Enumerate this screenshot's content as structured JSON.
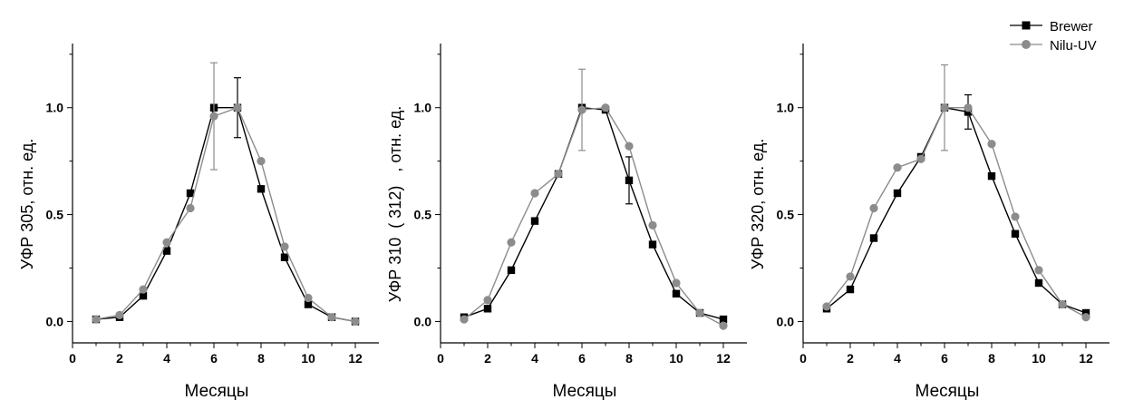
{
  "legend": {
    "position": "top-right",
    "items": [
      {
        "label": "Brewer",
        "color": "#000000",
        "marker": "square"
      },
      {
        "label": "Nilu-UV",
        "color": "#8c8c8c",
        "marker": "circle"
      }
    ]
  },
  "chart_data": [
    {
      "type": "line",
      "xlabel": "Месяцы",
      "ylabel": "УФР 305, отн. ед.",
      "xlim": [
        0,
        13
      ],
      "ylim": [
        -0.1,
        1.3
      ],
      "xticks": [
        0,
        2,
        4,
        6,
        8,
        10,
        12
      ],
      "yticks": [
        0.0,
        0.5,
        1.0
      ],
      "ytick_labels": [
        "0.0",
        "0.5",
        "1.0"
      ],
      "grid": false,
      "x": [
        1,
        2,
        3,
        4,
        5,
        6,
        7,
        8,
        9,
        10,
        11,
        12
      ],
      "series": [
        {
          "name": "Brewer",
          "color": "#000000",
          "values": [
            0.01,
            0.02,
            0.12,
            0.33,
            0.6,
            1.0,
            1.0,
            0.62,
            0.3,
            0.08,
            0.02,
            0.0
          ],
          "error_bars": [
            {
              "x": 7,
              "y": 1.0,
              "err": 0.14
            }
          ]
        },
        {
          "name": "Nilu-UV",
          "color": "#8c8c8c",
          "values": [
            0.01,
            0.03,
            0.15,
            0.37,
            0.53,
            0.96,
            1.0,
            0.75,
            0.35,
            0.11,
            0.02,
            0.0
          ],
          "error_bars": [
            {
              "x": 6,
              "y": 0.96,
              "err": 0.25
            }
          ]
        }
      ]
    },
    {
      "type": "line",
      "xlabel": "Месяцы",
      "ylabel": "УФР 310  ( 312)   , отн. ед.",
      "xlim": [
        0,
        13
      ],
      "ylim": [
        -0.1,
        1.3
      ],
      "xticks": [
        0,
        2,
        4,
        6,
        8,
        10,
        12
      ],
      "yticks": [
        0.0,
        0.5,
        1.0
      ],
      "ytick_labels": [
        "0.0",
        "0.5",
        "1.0"
      ],
      "grid": false,
      "x": [
        1,
        2,
        3,
        4,
        5,
        6,
        7,
        8,
        9,
        10,
        11,
        12
      ],
      "series": [
        {
          "name": "Brewer",
          "color": "#000000",
          "values": [
            0.02,
            0.06,
            0.24,
            0.47,
            0.69,
            1.0,
            0.99,
            0.66,
            0.36,
            0.13,
            0.04,
            0.01
          ],
          "error_bars": [
            {
              "x": 8,
              "y": 0.66,
              "err": 0.11
            }
          ]
        },
        {
          "name": "Nilu-UV",
          "color": "#8c8c8c",
          "values": [
            0.01,
            0.1,
            0.37,
            0.6,
            0.69,
            0.99,
            1.0,
            0.82,
            0.45,
            0.18,
            0.04,
            -0.02
          ],
          "error_bars": [
            {
              "x": 6,
              "y": 0.99,
              "err": 0.19
            }
          ]
        }
      ]
    },
    {
      "type": "line",
      "xlabel": "Месяцы",
      "ylabel": "УФР 320, отн. ед.",
      "xlim": [
        0,
        13
      ],
      "ylim": [
        -0.1,
        1.3
      ],
      "xticks": [
        0,
        2,
        4,
        6,
        8,
        10,
        12
      ],
      "yticks": [
        0.0,
        0.5,
        1.0
      ],
      "ytick_labels": [
        "0.0",
        "0.5",
        "1.0"
      ],
      "grid": false,
      "x": [
        1,
        2,
        3,
        4,
        5,
        6,
        7,
        8,
        9,
        10,
        11,
        12
      ],
      "series": [
        {
          "name": "Brewer",
          "color": "#000000",
          "values": [
            0.06,
            0.15,
            0.39,
            0.6,
            0.77,
            1.0,
            0.98,
            0.68,
            0.41,
            0.18,
            0.08,
            0.04
          ],
          "error_bars": [
            {
              "x": 7,
              "y": 0.98,
              "err": 0.08
            }
          ]
        },
        {
          "name": "Nilu-UV",
          "color": "#8c8c8c",
          "values": [
            0.07,
            0.21,
            0.53,
            0.72,
            0.76,
            1.0,
            1.0,
            0.83,
            0.49,
            0.24,
            0.08,
            0.02
          ],
          "error_bars": [
            {
              "x": 6,
              "y": 1.0,
              "err": 0.2
            }
          ]
        }
      ]
    }
  ]
}
